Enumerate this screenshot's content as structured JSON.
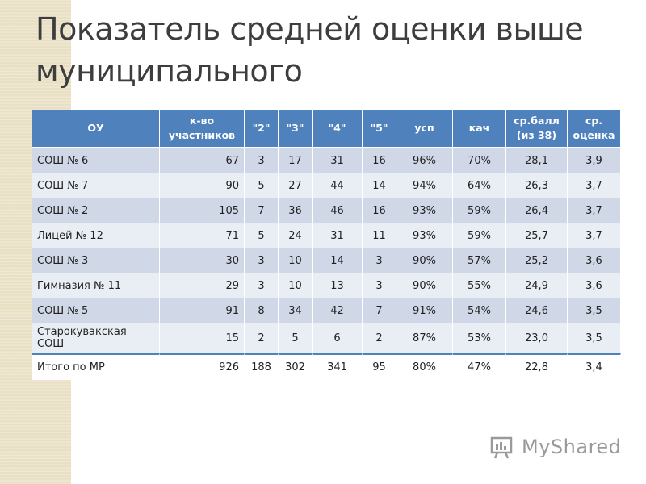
{
  "title": "Показатель средней оценки выше муниципального",
  "table": {
    "headers": [
      "ОУ",
      "к-во участников",
      "\"2\"",
      "\"3\"",
      "\"4\"",
      "\"5\"",
      "усп",
      "кач",
      "ср.балл (из 38)",
      "ср. оценка"
    ],
    "rows": [
      [
        "СОШ № 6",
        "67",
        "3",
        "17",
        "31",
        "16",
        "96%",
        "70%",
        "28,1",
        "3,9"
      ],
      [
        "СОШ № 7",
        "90",
        "5",
        "27",
        "44",
        "14",
        "94%",
        "64%",
        "26,3",
        "3,7"
      ],
      [
        "СОШ № 2",
        "105",
        "7",
        "36",
        "46",
        "16",
        "93%",
        "59%",
        "26,4",
        "3,7"
      ],
      [
        "Лицей № 12",
        "71",
        "5",
        "24",
        "31",
        "11",
        "93%",
        "59%",
        "25,7",
        "3,7"
      ],
      [
        "СОШ № 3",
        "30",
        "3",
        "10",
        "14",
        "3",
        "90%",
        "57%",
        "25,2",
        "3,6"
      ],
      [
        "Гимназия № 11",
        "29",
        "3",
        "10",
        "13",
        "3",
        "90%",
        "55%",
        "24,9",
        "3,6"
      ],
      [
        "СОШ № 5",
        "91",
        "8",
        "34",
        "42",
        "7",
        "91%",
        "54%",
        "24,6",
        "3,5"
      ],
      [
        "Старокувакская СОШ",
        "15",
        "2",
        "5",
        "6",
        "2",
        "87%",
        "53%",
        "23,0",
        "3,5"
      ]
    ],
    "total": [
      "Итого по МР",
      "926",
      "188",
      "302",
      "341",
      "95",
      "80%",
      "47%",
      "22,8",
      "3,4"
    ]
  },
  "watermark": {
    "text": "MyShared"
  },
  "colors": {
    "header": "#4f81bd",
    "row_odd": "#d0d8e8",
    "row_even": "#e9edf4"
  }
}
